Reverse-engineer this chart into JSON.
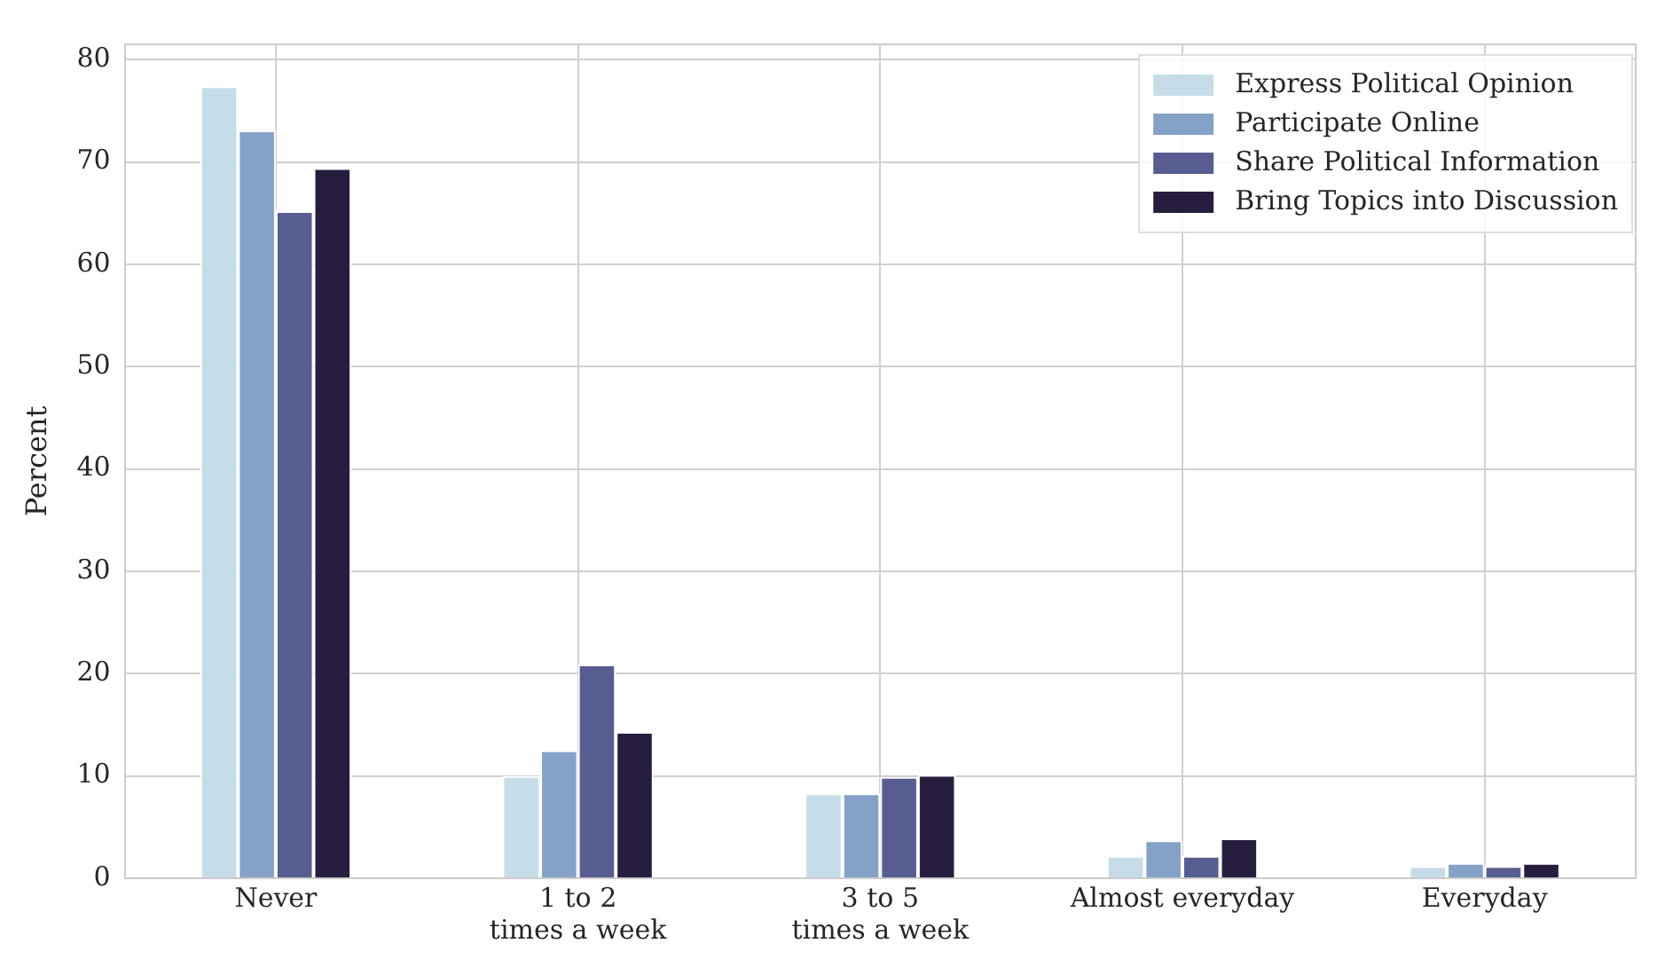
{
  "chart_data": {
    "type": "bar",
    "ylabel": "Percent",
    "categories": [
      "Never",
      "1 to 2\ntimes a week",
      "3 to 5\ntimes a week",
      "Almost everyday",
      "Everyday"
    ],
    "series": [
      {
        "name": "Express Political Opinion",
        "color": "#c6dde9",
        "values": [
          77.4,
          10,
          8.3,
          2.2,
          1.2
        ]
      },
      {
        "name": "Participate Online",
        "color": "#84a2c8",
        "values": [
          73.1,
          12.5,
          8.3,
          3.7,
          1.5
        ]
      },
      {
        "name": "Share Political Information",
        "color": "#575d90",
        "values": [
          65.2,
          20.9,
          9.9,
          2.2,
          1.2
        ]
      },
      {
        "name": "Bring Topics into Discussion",
        "color": "#271e3f",
        "values": [
          69.4,
          14.3,
          10.1,
          3.9,
          1.5
        ]
      }
    ],
    "ylim": [
      0,
      81.5
    ],
    "yticks": [
      0,
      10,
      20,
      30,
      40,
      50,
      60,
      70,
      80
    ],
    "grid": true,
    "legend": "top right"
  }
}
